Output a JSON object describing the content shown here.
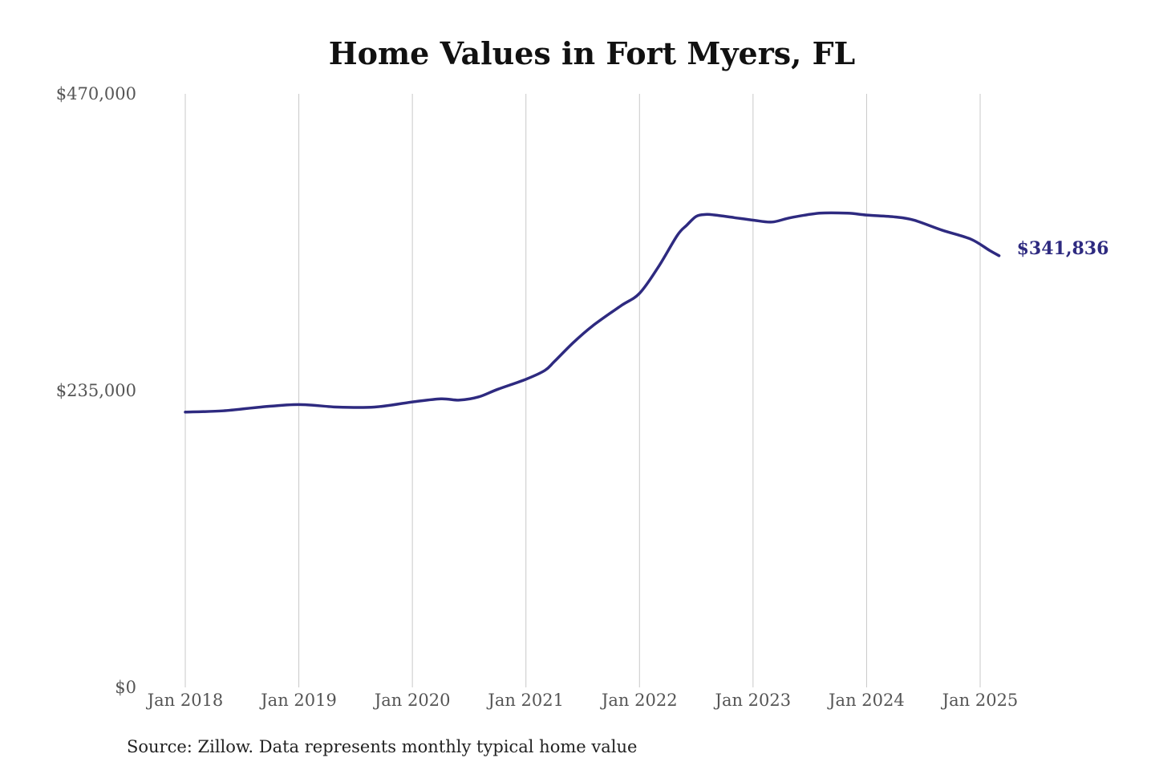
{
  "chart_data": {
    "type": "line",
    "title": "Home Values in Fort Myers, FL",
    "xlabel": "",
    "ylabel": "",
    "source": "Source: Zillow. Data represents monthly typical home value",
    "ylim": [
      0,
      470000
    ],
    "xlim": [
      "2018-01",
      "2025-03"
    ],
    "y_ticks": [
      {
        "value": 0,
        "label": "$0"
      },
      {
        "value": 235000,
        "label": "$235,000"
      },
      {
        "value": 470000,
        "label": "$470,000"
      }
    ],
    "x_ticks": [
      {
        "value": "2018-01",
        "label": "Jan 2018"
      },
      {
        "value": "2019-01",
        "label": "Jan 2019"
      },
      {
        "value": "2020-01",
        "label": "Jan 2020"
      },
      {
        "value": "2021-01",
        "label": "Jan 2021"
      },
      {
        "value": "2022-01",
        "label": "Jan 2022"
      },
      {
        "value": "2023-01",
        "label": "Jan 2023"
      },
      {
        "value": "2024-01",
        "label": "Jan 2024"
      },
      {
        "value": "2025-01",
        "label": "Jan 2025"
      }
    ],
    "grid": {
      "vertical": true,
      "horizontal": false
    },
    "line_color": "#2e2a80",
    "end_label": "$341,836",
    "series": [
      {
        "points": [
          {
            "x": "2018-01",
            "y": 218000
          },
          {
            "x": "2018-05",
            "y": 219000
          },
          {
            "x": "2018-09",
            "y": 222000
          },
          {
            "x": "2019-01",
            "y": 224000
          },
          {
            "x": "2019-05",
            "y": 222000
          },
          {
            "x": "2019-09",
            "y": 222000
          },
          {
            "x": "2020-01",
            "y": 226000
          },
          {
            "x": "2020-04",
            "y": 228500
          },
          {
            "x": "2020-06",
            "y": 227500
          },
          {
            "x": "2020-08",
            "y": 230000
          },
          {
            "x": "2020-10",
            "y": 236000
          },
          {
            "x": "2021-01",
            "y": 244000
          },
          {
            "x": "2021-03",
            "y": 251000
          },
          {
            "x": "2021-04",
            "y": 258000
          },
          {
            "x": "2021-06",
            "y": 273000
          },
          {
            "x": "2021-08",
            "y": 286000
          },
          {
            "x": "2021-11",
            "y": 302000
          },
          {
            "x": "2022-01",
            "y": 312000
          },
          {
            "x": "2022-03",
            "y": 333000
          },
          {
            "x": "2022-05",
            "y": 358000
          },
          {
            "x": "2022-06",
            "y": 366000
          },
          {
            "x": "2022-07",
            "y": 373000
          },
          {
            "x": "2022-08",
            "y": 374500
          },
          {
            "x": "2022-09",
            "y": 374000
          },
          {
            "x": "2022-11",
            "y": 372000
          },
          {
            "x": "2023-01",
            "y": 370000
          },
          {
            "x": "2023-03",
            "y": 368500
          },
          {
            "x": "2023-05",
            "y": 372000
          },
          {
            "x": "2023-08",
            "y": 375500
          },
          {
            "x": "2023-11",
            "y": 375500
          },
          {
            "x": "2024-01",
            "y": 374000
          },
          {
            "x": "2024-04",
            "y": 372500
          },
          {
            "x": "2024-06",
            "y": 370000
          },
          {
            "x": "2024-09",
            "y": 362000
          },
          {
            "x": "2024-12",
            "y": 355000
          },
          {
            "x": "2025-02",
            "y": 346000
          },
          {
            "x": "2025-03",
            "y": 341836
          }
        ]
      }
    ]
  }
}
